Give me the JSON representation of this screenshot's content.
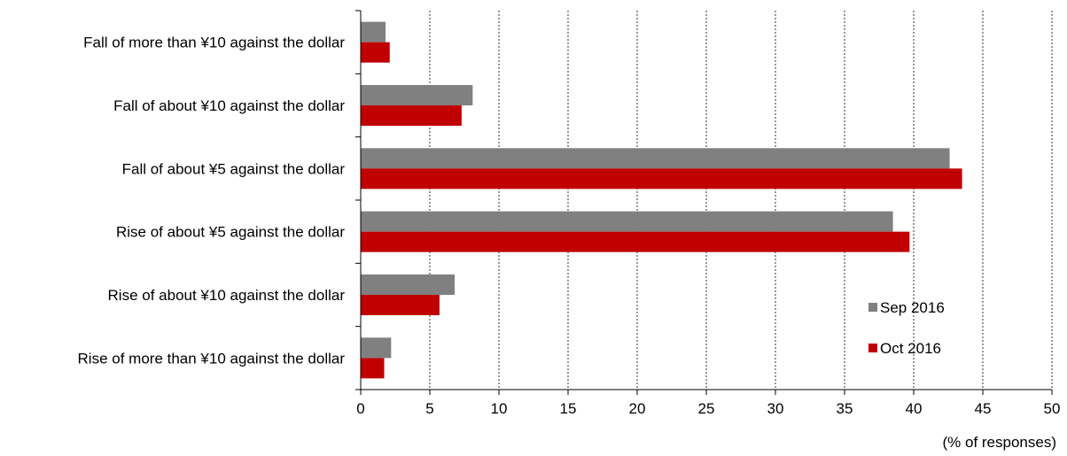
{
  "chart_data": {
    "type": "bar",
    "orientation": "horizontal",
    "categories": [
      "Fall of more than ¥10 against the dollar",
      "Fall of about ¥10 against the dollar",
      "Fall of about ¥5 against the dollar",
      "Rise of about ¥5 against the dollar",
      "Rise of about ¥10 against the dollar",
      "Rise of more than ¥10 against the dollar"
    ],
    "series": [
      {
        "name": "Sep 2016",
        "color": "#808080",
        "values": [
          1.8,
          8.1,
          42.6,
          38.5,
          6.8,
          2.2
        ]
      },
      {
        "name": "Oct 2016",
        "color": "#c00000",
        "values": [
          2.1,
          7.3,
          43.5,
          39.7,
          5.7,
          1.7
        ]
      }
    ],
    "xlim": [
      0,
      50
    ],
    "x_ticks": [
      0,
      5,
      10,
      15,
      20,
      25,
      30,
      35,
      40,
      45,
      50
    ],
    "xlabel": "(% of responses)",
    "grid": "vertical dashed",
    "legend_position": "bottom-right"
  }
}
